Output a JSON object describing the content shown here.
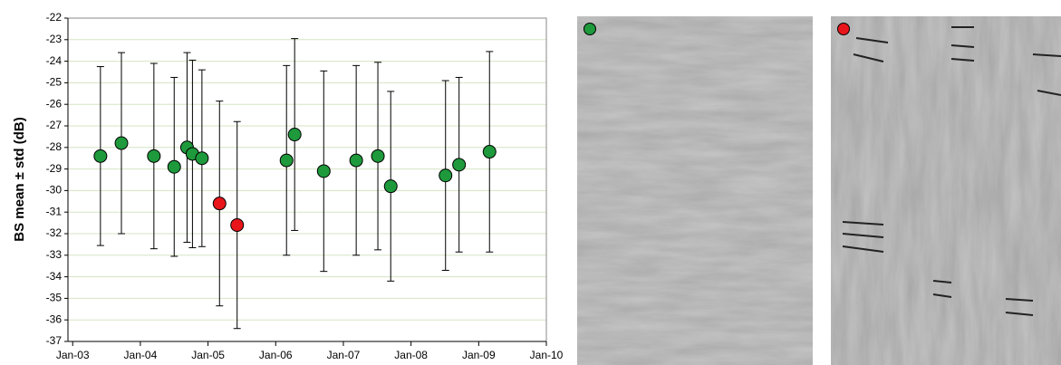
{
  "chart_data": {
    "type": "errorbar",
    "y_label": "BS mean ± std (dB)",
    "xlim": [
      2002.93,
      2010
    ],
    "xticks": [
      {
        "value": 2003,
        "label": "Jan-03"
      },
      {
        "value": 2004,
        "label": "Jan-04"
      },
      {
        "value": 2005,
        "label": "Jan-05"
      },
      {
        "value": 2006,
        "label": "Jan-06"
      },
      {
        "value": 2007,
        "label": "Jan-07"
      },
      {
        "value": 2008,
        "label": "Jan-08"
      },
      {
        "value": 2009,
        "label": "Jan-09"
      },
      {
        "value": 2010,
        "label": "Jan-10"
      }
    ],
    "ylim": [
      -37,
      -22
    ],
    "yticks": [
      -22,
      -23,
      -24,
      -25,
      -26,
      -27,
      -28,
      -29,
      -30,
      -31,
      -32,
      -33,
      -34,
      -35,
      -36,
      -37
    ],
    "grid": true,
    "series": [
      {
        "color": "#1e9a3c",
        "x": [
          2003.41,
          2003.72,
          2004.2,
          2004.5,
          2004.69,
          2004.77,
          2004.91,
          2006.16,
          2006.28,
          2006.71,
          2007.19,
          2007.51,
          2007.7,
          2008.51,
          2008.71,
          2009.16
        ],
        "values": [
          -28.4,
          -27.8,
          -28.4,
          -28.9,
          -28.0,
          -28.3,
          -28.5,
          -28.6,
          -27.4,
          -29.1,
          -28.6,
          -28.4,
          -29.8,
          -29.3,
          -28.8,
          -28.2
        ],
        "errors": [
          4.15,
          4.2,
          4.3,
          4.15,
          4.4,
          4.35,
          4.1,
          4.4,
          4.45,
          4.65,
          4.4,
          4.35,
          4.4,
          4.4,
          4.05,
          4.65
        ]
      },
      {
        "color": "#e8161b",
        "x": [
          2005.17,
          2005.43
        ],
        "values": [
          -30.6,
          -31.6
        ],
        "errors": [
          4.75,
          4.8
        ]
      }
    ]
  }
}
